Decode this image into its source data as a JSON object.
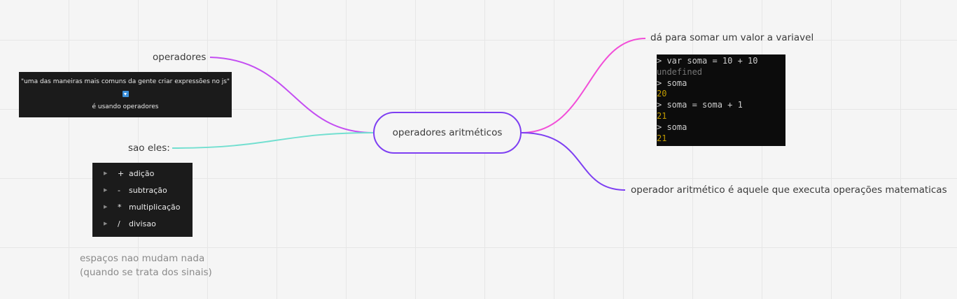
{
  "central_topic": "operadores aritméticos",
  "left": {
    "operadores_label": "operadores",
    "quote_card": {
      "line1": "\"uma das maneiras mais comuns da gente criar expressões no js\"",
      "arrow_icon": "down-arrow-icon",
      "line2": "é usando operadores"
    },
    "sao_eles_label": "sao eles:",
    "operators_list": [
      {
        "symbol": "+",
        "name": "adição"
      },
      {
        "symbol": "-",
        "name": "subtração"
      },
      {
        "symbol": "*",
        "name": "multiplicação"
      },
      {
        "symbol": "/",
        "name": "divisao"
      }
    ],
    "note_line1": "espaços nao mudam nada",
    "note_line2": "(quando se trata dos sinais)"
  },
  "right": {
    "somar_label": "dá para somar um valor a variavel",
    "terminal_lines": [
      {
        "text": "> var soma = 10 + 10",
        "kind": "input"
      },
      {
        "text": "undefined",
        "kind": "undefined"
      },
      {
        "text": "> soma",
        "kind": "input"
      },
      {
        "text": "20",
        "kind": "number"
      },
      {
        "text": "> soma = soma + 1",
        "kind": "input"
      },
      {
        "text": "21",
        "kind": "number"
      },
      {
        "text": "> soma",
        "kind": "input"
      },
      {
        "text": "21",
        "kind": "number"
      }
    ],
    "definition_label": "operador aritmético é aquele que executa operações matematicas"
  },
  "colors": {
    "central_border": "#7e3ff2",
    "branch_operadores": "#c44ef2",
    "branch_sao_eles": "#72dfd0",
    "branch_somar": "#f24ed8",
    "branch_definition": "#7e3ff2",
    "terminal_input": "#cccccc",
    "terminal_undefined": "#767676",
    "terminal_number": "#c19c00"
  }
}
